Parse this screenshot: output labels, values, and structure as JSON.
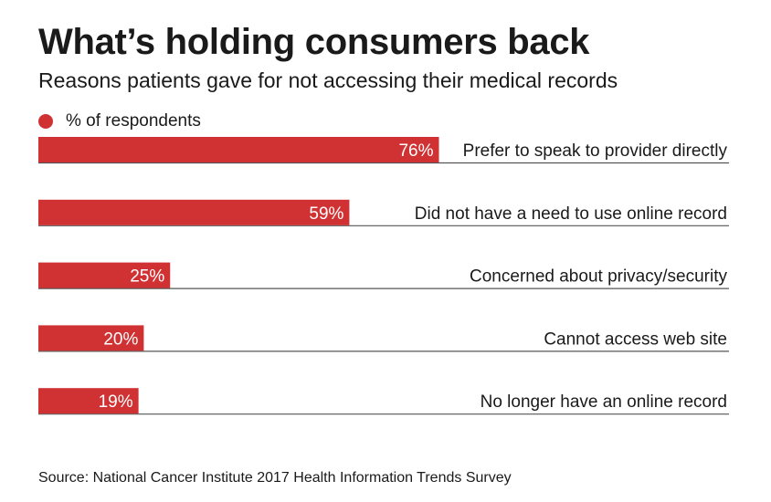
{
  "title": "What’s holding consumers back",
  "subtitle": "Reasons patients gave for not accessing their medical records",
  "source": "Source: National Cancer Institute 2017 Health Information Trends Survey",
  "colors": {
    "bar": "#d03234",
    "baseline": "#555555",
    "value_text": "#ffffff",
    "label_text": "#1a1a1a"
  },
  "chart_data": {
    "type": "bar",
    "orientation": "horizontal",
    "series": [
      {
        "name": "% of respondents",
        "values": [
          76,
          59,
          25,
          20,
          19
        ]
      }
    ],
    "categories": [
      "Prefer to speak to provider directly",
      "Did not have a need to use online record",
      "Concerned about privacy/security",
      "Cannot access web site",
      "No longer have an online record"
    ],
    "data_labels": [
      "76%",
      "59%",
      "25%",
      "20%",
      "19%"
    ],
    "legend": [
      "% of respondents"
    ],
    "legend_position": "top-left",
    "xlim": [
      0,
      100
    ],
    "unit": "%",
    "grid": false
  }
}
